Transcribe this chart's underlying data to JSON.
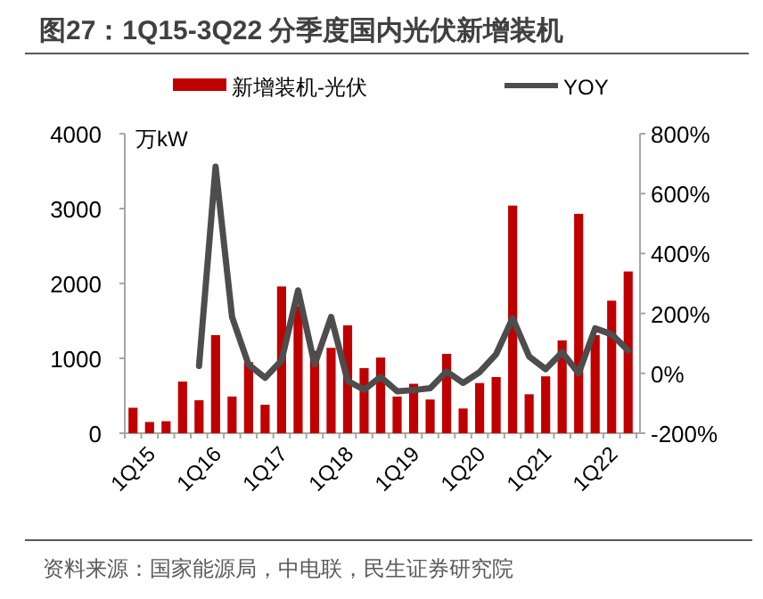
{
  "chart_data": {
    "type": "bar",
    "title": "图27：1Q15-3Q22 分季度国内光伏新增装机",
    "ylabel": "万kW",
    "categories": [
      "1Q15",
      null,
      null,
      null,
      "1Q16",
      null,
      null,
      null,
      "1Q17",
      null,
      null,
      null,
      "1Q18",
      null,
      null,
      null,
      "1Q19",
      null,
      null,
      null,
      "1Q20",
      null,
      null,
      null,
      "1Q21",
      null,
      null,
      null,
      "1Q22",
      null,
      null
    ],
    "series": [
      {
        "name": "新增装机-光伏",
        "color": "#c00000",
        "values": [
          340,
          150,
          160,
          690,
          440,
          1310,
          490,
          950,
          380,
          1960,
          1700,
          1100,
          1140,
          1440,
          870,
          1010,
          490,
          660,
          450,
          1060,
          330,
          670,
          750,
          3040,
          520,
          760,
          1240,
          2930,
          1310,
          1770,
          2160
        ]
      },
      {
        "name": "YOY",
        "type": "line",
        "axis": "y2",
        "color": "#4d4d4d",
        "values": [
          null,
          null,
          null,
          null,
          25,
          690,
          188,
          29,
          -15,
          43,
          277,
          29,
          188,
          -25,
          -55,
          -12,
          -60,
          -56,
          -50,
          6,
          -32,
          4,
          64,
          184,
          56,
          14,
          70,
          0,
          150,
          130,
          76
        ]
      }
    ],
    "ylim": [
      0,
      4000
    ],
    "yticks": [
      0,
      1000,
      2000,
      3000,
      4000
    ],
    "y2lim": [
      -200,
      800
    ],
    "y2ticks": [
      {
        "value": -200,
        "label": "-200%"
      },
      {
        "value": 0,
        "label": "0%"
      },
      {
        "value": 200,
        "label": "200%"
      },
      {
        "value": 400,
        "label": "400%"
      },
      {
        "value": 600,
        "label": "600%"
      },
      {
        "value": 800,
        "label": "800%"
      }
    ],
    "legend": "top",
    "annotations": [
      "资料来源：国家能源局，中电联，民生证券研究院"
    ]
  }
}
